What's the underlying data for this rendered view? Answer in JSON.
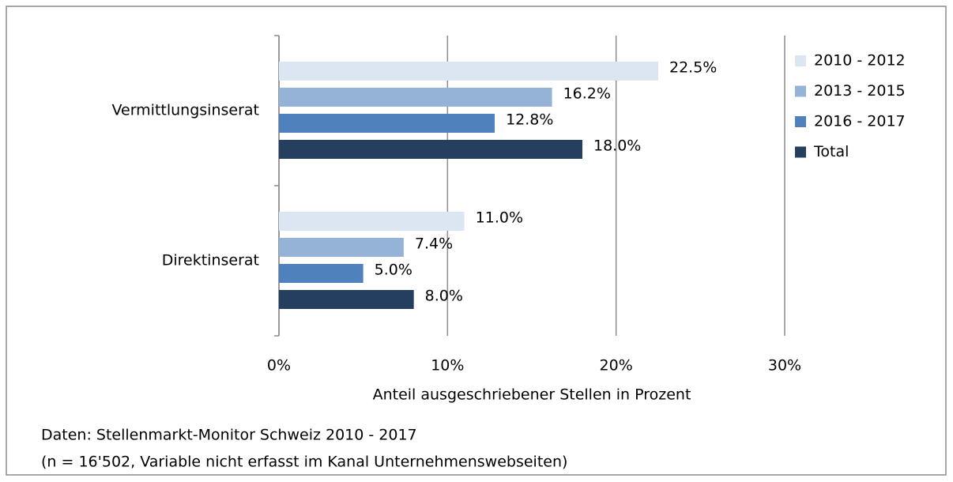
{
  "chart_data": {
    "type": "bar",
    "orientation": "horizontal",
    "categories": [
      "Vermittlungsinserat",
      "Direktinserat"
    ],
    "series": [
      {
        "name": "2010 - 2012",
        "color": "#dce6f2",
        "values": [
          22.5,
          11.0
        ],
        "value_labels": [
          "22.5%",
          "11.0%"
        ]
      },
      {
        "name": "2013 - 2015",
        "color": "#95b3d7",
        "values": [
          16.2,
          7.4
        ],
        "value_labels": [
          "16.2%",
          "7.4%"
        ]
      },
      {
        "name": "2016 - 2017",
        "color": "#4f81bd",
        "values": [
          12.8,
          5.0
        ],
        "value_labels": [
          "12.8%",
          "5.0%"
        ]
      },
      {
        "name": "Total",
        "color": "#243f60",
        "values": [
          18.0,
          8.0
        ],
        "value_labels": [
          "18.0%",
          "8.0%"
        ]
      }
    ],
    "xlim": [
      0,
      30
    ],
    "xticks": [
      {
        "value": 0,
        "label": "0%"
      },
      {
        "value": 10,
        "label": "10%"
      },
      {
        "value": 20,
        "label": "20%"
      },
      {
        "value": 30,
        "label": "30%"
      }
    ],
    "xlabel": "Anteil ausgeschriebener Stellen in Prozent",
    "grid": true,
    "legend": "right",
    "notes": [
      "Daten: Stellenmarkt-Monitor Schweiz 2010 - 2017",
      "(n = 16'502, Variable nicht erfasst im Kanal Unternehmenswebseiten)"
    ]
  }
}
